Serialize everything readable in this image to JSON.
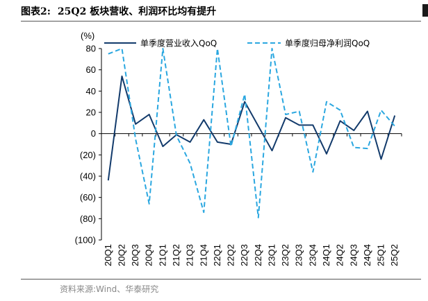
{
  "header": {
    "label": "图表2:",
    "title": "25Q2 板块营收、利润环比均有提升"
  },
  "source": "资料来源:Wind、华泰研究",
  "colors": {
    "revenue": "#123a6b",
    "profit": "#2aa7e0",
    "rule": "#555555"
  },
  "chart_data": {
    "type": "line",
    "ylabel": "(%)",
    "ylim": [
      -100,
      80
    ],
    "yticks": [
      "80",
      "60",
      "40",
      "20",
      "0",
      "(20)",
      "(40)",
      "(60)",
      "(80)",
      "(100)"
    ],
    "ytick_values": [
      80,
      60,
      40,
      20,
      0,
      -20,
      -40,
      -60,
      -80,
      -100
    ],
    "categories": [
      "20Q1",
      "20Q2",
      "20Q3",
      "20Q4",
      "21Q1",
      "21Q2",
      "21Q3",
      "21Q4",
      "22Q1",
      "22Q2",
      "22Q3",
      "22Q4",
      "23Q1",
      "23Q2",
      "23Q3",
      "23Q4",
      "24Q1",
      "24Q2",
      "24Q3",
      "24Q4",
      "25Q1",
      "25Q2"
    ],
    "legend_position": "top",
    "series": [
      {
        "name": "单季度营业收入QoQ",
        "style": "solid",
        "values": [
          -44,
          54,
          9,
          18,
          -12,
          -1,
          -8,
          13,
          -8,
          -10,
          30,
          7,
          -16,
          15,
          8,
          8,
          -19,
          12,
          3,
          21,
          -24,
          17
        ]
      },
      {
        "name": "单季度归母净利润QoQ",
        "style": "dashed",
        "values": [
          75,
          80,
          -5,
          -66,
          80,
          -2,
          -28,
          -74,
          80,
          -12,
          37,
          -79,
          80,
          18,
          21,
          -36,
          30,
          22,
          -13,
          -14,
          22,
          7
        ]
      }
    ]
  }
}
